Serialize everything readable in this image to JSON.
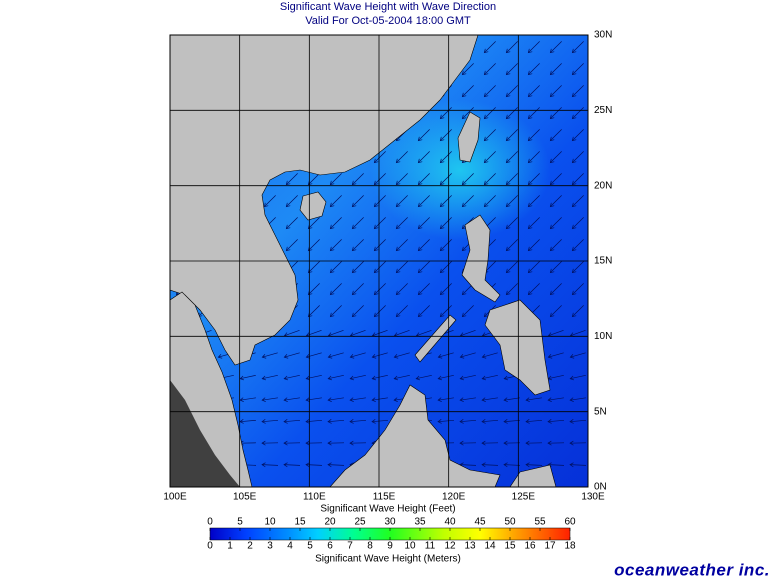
{
  "map": {
    "title": "Significant Wave Height with Wave Direction",
    "subtitle": "Valid For Oct-05-2004 18:00 GMT",
    "lon_ticks": [
      {
        "value": 100,
        "label": "100E"
      },
      {
        "value": 105,
        "label": "105E"
      },
      {
        "value": 110,
        "label": "110E"
      },
      {
        "value": 115,
        "label": "115E"
      },
      {
        "value": 120,
        "label": "120E"
      },
      {
        "value": 125,
        "label": "125E"
      },
      {
        "value": 130,
        "label": "130E"
      }
    ],
    "lat_ticks": [
      {
        "value": 0,
        "label": "0N"
      },
      {
        "value": 5,
        "label": "5N"
      },
      {
        "value": 10,
        "label": "10N"
      },
      {
        "value": 15,
        "label": "15N"
      },
      {
        "value": 20,
        "label": "20N"
      },
      {
        "value": 25,
        "label": "25N"
      },
      {
        "value": 30,
        "label": "30N"
      }
    ],
    "colorbar": {
      "feet_label": "Significant Wave Height (Feet)",
      "feet_ticks": [
        0,
        5,
        10,
        15,
        20,
        25,
        30,
        35,
        40,
        45,
        50,
        55,
        60
      ],
      "meters_label": "Significant Wave Height (Meters)",
      "meters_ticks": [
        0,
        1,
        2,
        3,
        4,
        5,
        6,
        7,
        8,
        9,
        10,
        11,
        12,
        13,
        14,
        15,
        16,
        17,
        18
      ]
    },
    "brand": "oceanweather inc."
  }
}
